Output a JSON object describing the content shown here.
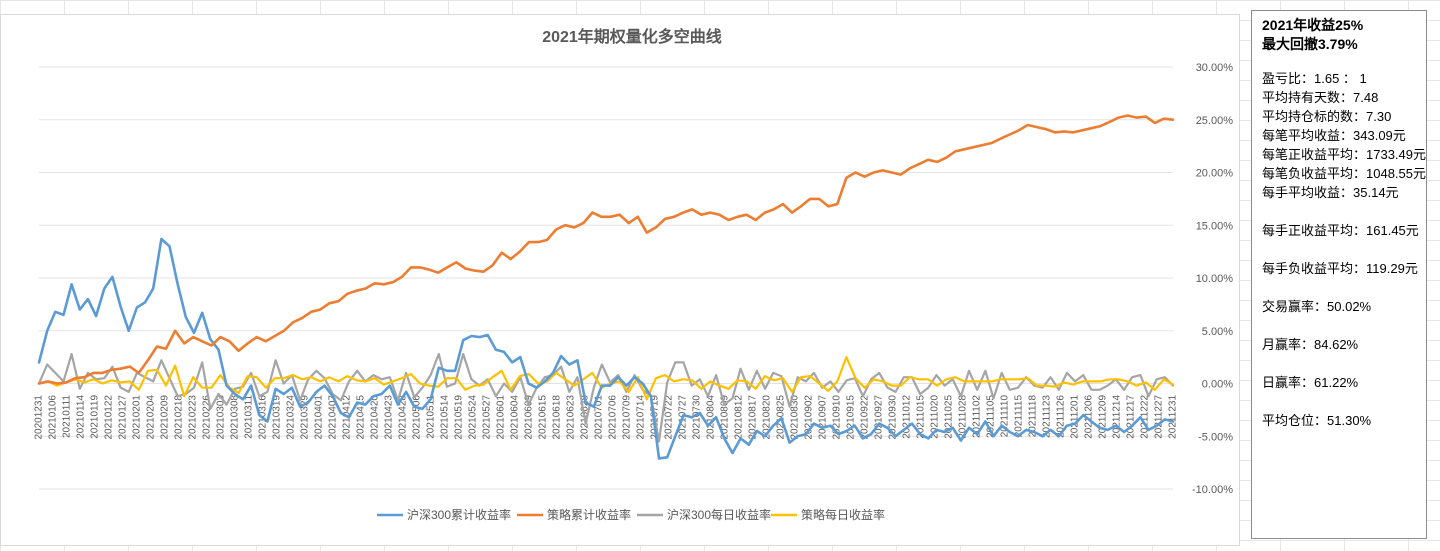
{
  "chart_data": {
    "type": "line",
    "title": "2021年期权量化多空曲线",
    "ylim": [
      -0.1,
      0.3
    ],
    "yticks": [
      "30.00%",
      "25.00%",
      "20.00%",
      "15.00%",
      "10.00%",
      "5.00%",
      "0.00%",
      "-5.00%",
      "-10.00%"
    ],
    "ytick_values": [
      0.3,
      0.25,
      0.2,
      0.15,
      0.1,
      0.05,
      0.0,
      -0.05,
      -0.1
    ],
    "xtick_labels": [
      "20201231",
      "20210106",
      "20210111",
      "20210114",
      "20210119",
      "20210122",
      "20210127",
      "20210201",
      "20210204",
      "20210209",
      "20210218",
      "20210223",
      "20210226",
      "20210303",
      "20210308",
      "20210311",
      "20210316",
      "20210319",
      "20210324",
      "20210329",
      "20210401",
      "20210407",
      "20210412",
      "20210415",
      "20210420",
      "20210423",
      "20210428",
      "20210506",
      "20210511",
      "20210514",
      "20210519",
      "20210524",
      "20210527",
      "20210601",
      "20210604",
      "20210609",
      "20210615",
      "20210618",
      "20210623",
      "20210628",
      "20210701",
      "20210706",
      "20210709",
      "20210714",
      "20210719",
      "20210722",
      "20210727",
      "20210730",
      "20210804",
      "20210809",
      "20210812",
      "20210817",
      "20210820",
      "20210825",
      "20210830",
      "20210902",
      "20210907",
      "20210910",
      "20210915",
      "20210922",
      "20210927",
      "20210930",
      "20211012",
      "20211015",
      "20211020",
      "20211025",
      "20211028",
      "20211102",
      "20211105",
      "20211110",
      "20211115",
      "20211118",
      "20211123",
      "20211126",
      "20211201",
      "20211206",
      "20211209",
      "20211214",
      "20211217",
      "20211222",
      "20211227",
      "20211231"
    ],
    "grid": true,
    "legend_position": "bottom",
    "series": [
      {
        "name": "沪深300累计收益率",
        "color": "#5b9bd5",
        "values": [
          0.02,
          0.05,
          0.068,
          0.065,
          0.094,
          0.07,
          0.08,
          0.064,
          0.09,
          0.101,
          0.073,
          0.05,
          0.072,
          0.077,
          0.09,
          0.137,
          0.13,
          0.094,
          0.063,
          0.048,
          0.067,
          0.042,
          0.032,
          -0.002,
          -0.01,
          -0.015,
          -0.002,
          -0.03,
          -0.036,
          -0.005,
          -0.01,
          -0.004,
          -0.022,
          -0.018,
          -0.008,
          -0.002,
          -0.012,
          -0.028,
          -0.032,
          -0.018,
          -0.02,
          -0.012,
          -0.01,
          -0.002,
          -0.02,
          -0.008,
          -0.022,
          -0.024,
          -0.015,
          0.015,
          0.012,
          0.012,
          0.041,
          0.045,
          0.044,
          0.046,
          0.032,
          0.03,
          0.02,
          0.025,
          0.0,
          -0.004,
          0.002,
          0.01,
          0.026,
          0.018,
          0.022,
          -0.018,
          -0.022,
          -0.002,
          -0.002,
          0.006,
          -0.002,
          0.006,
          0.0,
          -0.012,
          -0.071,
          -0.07,
          -0.05,
          -0.03,
          -0.032,
          -0.028,
          -0.04,
          -0.032,
          -0.052,
          -0.066,
          -0.052,
          -0.058,
          -0.045,
          -0.05,
          -0.04,
          -0.033,
          -0.056,
          -0.05,
          -0.048,
          -0.038,
          -0.042,
          -0.04,
          -0.048,
          -0.045,
          -0.04,
          -0.052,
          -0.048,
          -0.038,
          -0.042,
          -0.05,
          -0.044,
          -0.038,
          -0.048,
          -0.052,
          -0.044,
          -0.046,
          -0.042,
          -0.054,
          -0.042,
          -0.048,
          -0.036,
          -0.05,
          -0.04,
          -0.046,
          -0.05,
          -0.044,
          -0.046,
          -0.05,
          -0.044,
          -0.05,
          -0.04,
          -0.038,
          -0.03,
          -0.036,
          -0.042,
          -0.044,
          -0.04,
          -0.046,
          -0.04,
          -0.032,
          -0.044,
          -0.04,
          -0.034,
          -0.036
        ]
      },
      {
        "name": "策略累计收益率",
        "color": "#ed7d31",
        "values": [
          0.0,
          0.002,
          0.0,
          0.001,
          0.005,
          0.006,
          0.01,
          0.01,
          0.013,
          0.014,
          0.016,
          0.01,
          0.022,
          0.035,
          0.033,
          0.05,
          0.038,
          0.044,
          0.04,
          0.036,
          0.044,
          0.04,
          0.031,
          0.038,
          0.044,
          0.04,
          0.045,
          0.05,
          0.058,
          0.062,
          0.068,
          0.07,
          0.076,
          0.078,
          0.085,
          0.088,
          0.09,
          0.095,
          0.094,
          0.096,
          0.101,
          0.11,
          0.11,
          0.108,
          0.105,
          0.11,
          0.115,
          0.109,
          0.107,
          0.106,
          0.112,
          0.124,
          0.118,
          0.125,
          0.134,
          0.134,
          0.136,
          0.146,
          0.15,
          0.148,
          0.152,
          0.162,
          0.158,
          0.158,
          0.16,
          0.152,
          0.158,
          0.143,
          0.148,
          0.156,
          0.158,
          0.162,
          0.165,
          0.16,
          0.162,
          0.16,
          0.155,
          0.158,
          0.16,
          0.155,
          0.162,
          0.165,
          0.17,
          0.162,
          0.168,
          0.175,
          0.175,
          0.168,
          0.17,
          0.195,
          0.2,
          0.196,
          0.2,
          0.202,
          0.2,
          0.198,
          0.204,
          0.208,
          0.212,
          0.21,
          0.214,
          0.22,
          0.222,
          0.224,
          0.226,
          0.228,
          0.232,
          0.236,
          0.24,
          0.245,
          0.243,
          0.241,
          0.238,
          0.239,
          0.238,
          0.24,
          0.242,
          0.244,
          0.248,
          0.252,
          0.254,
          0.252,
          0.253,
          0.247,
          0.251,
          0.25
        ]
      },
      {
        "name": "沪深300每日收益率",
        "color": "#a5a5a5",
        "values": [
          0.0,
          0.018,
          0.01,
          0.002,
          0.028,
          -0.005,
          0.01,
          0.004,
          0.005,
          0.016,
          -0.004,
          -0.008,
          0.01,
          0.006,
          0.002,
          0.022,
          0.005,
          -0.012,
          -0.01,
          -0.004,
          0.02,
          -0.024,
          -0.01,
          -0.02,
          -0.005,
          -0.003,
          0.01,
          -0.012,
          -0.008,
          0.022,
          0.0,
          0.008,
          -0.016,
          0.004,
          0.012,
          0.005,
          -0.01,
          -0.016,
          0.002,
          0.012,
          0.002,
          0.008,
          0.004,
          0.006,
          -0.016,
          0.01,
          -0.013,
          -0.004,
          0.008,
          0.028,
          -0.003,
          0.0,
          0.028,
          0.004,
          -0.002,
          0.004,
          -0.012,
          0.0,
          -0.008,
          0.006,
          -0.02,
          -0.004,
          0.006,
          0.008,
          0.016,
          -0.008,
          0.006,
          -0.038,
          -0.004,
          0.018,
          0.001,
          0.008,
          -0.008,
          0.008,
          -0.006,
          -0.012,
          -0.055,
          0.001,
          0.02,
          0.02,
          -0.002,
          0.004,
          -0.012,
          0.008,
          -0.02,
          -0.014,
          0.014,
          -0.006,
          0.012,
          -0.005,
          0.01,
          0.007,
          -0.022,
          0.006,
          0.002,
          0.01,
          -0.004,
          0.002,
          -0.008,
          0.003,
          0.005,
          -0.012,
          0.004,
          0.01,
          -0.004,
          -0.008,
          0.006,
          0.006,
          -0.01,
          -0.004,
          0.008,
          -0.002,
          0.004,
          -0.012,
          0.012,
          -0.006,
          0.012,
          -0.014,
          0.01,
          -0.006,
          -0.004,
          0.006,
          -0.002,
          -0.004,
          0.006,
          -0.006,
          0.01,
          0.002,
          0.008,
          -0.006,
          -0.006,
          -0.002,
          0.004,
          -0.006,
          0.006,
          0.008,
          -0.012,
          0.004,
          0.006,
          -0.002
        ]
      },
      {
        "name": "策略每日收益率",
        "color": "#ffc000",
        "values": [
          0.0,
          0.002,
          -0.002,
          0.001,
          0.004,
          0.001,
          0.004,
          0.0,
          0.003,
          0.001,
          0.002,
          -0.006,
          0.012,
          0.013,
          -0.002,
          0.017,
          -0.012,
          0.006,
          -0.004,
          -0.004,
          0.008,
          -0.004,
          -0.009,
          0.007,
          0.006,
          -0.004,
          0.005,
          0.005,
          0.008,
          0.004,
          0.006,
          0.002,
          0.006,
          0.002,
          0.007,
          0.003,
          0.002,
          0.005,
          -0.001,
          0.002,
          0.005,
          0.009,
          0.0,
          -0.002,
          -0.003,
          0.005,
          0.005,
          -0.006,
          -0.002,
          -0.001,
          0.006,
          0.012,
          -0.006,
          0.007,
          0.009,
          0.0,
          0.002,
          0.01,
          0.004,
          -0.002,
          0.004,
          0.01,
          -0.004,
          0.0,
          0.002,
          -0.008,
          0.006,
          -0.015,
          0.005,
          0.008,
          0.002,
          0.004,
          0.003,
          -0.005,
          0.002,
          -0.002,
          -0.005,
          0.003,
          0.002,
          -0.005,
          0.007,
          0.003,
          0.005,
          -0.008,
          0.006,
          0.007,
          0.0,
          -0.007,
          0.002,
          0.025,
          0.005,
          -0.004,
          0.004,
          0.002,
          -0.002,
          -0.002,
          0.006,
          0.004,
          0.004,
          -0.002,
          0.004,
          0.006,
          0.002,
          0.002,
          0.002,
          0.002,
          0.004,
          0.004,
          0.004,
          0.005,
          -0.002,
          -0.002,
          -0.003,
          0.001,
          -0.001,
          0.002,
          0.002,
          0.002,
          0.004,
          0.004,
          0.002,
          -0.002,
          0.001,
          -0.006,
          0.004,
          -0.001
        ]
      }
    ]
  },
  "stats": {
    "headline_1": "2021年收益25%",
    "headline_2": "最大回撤3.79%",
    "rows": [
      {
        "label": "盈亏比：",
        "value": "1.65 ： 1"
      },
      {
        "label": "平均持有天数：",
        "value": "7.48"
      },
      {
        "label": "平均持仓标的数：",
        "value": "7.30"
      },
      {
        "label": "每笔平均收益：",
        "value": "343.09元"
      },
      {
        "label": "每笔正收益平均：",
        "value": "1733.49元"
      },
      {
        "label": "每笔负收益平均：",
        "value": "1048.55元"
      },
      {
        "label": "每手平均收益：",
        "value": "35.14元"
      },
      {
        "label": "每手正收益平均：",
        "value": "161.45元"
      },
      {
        "label": "每手负收益平均：",
        "value": "119.29元"
      },
      {
        "label": "交易赢率：",
        "value": "50.02%"
      },
      {
        "label": "月赢率：",
        "value": "84.62%"
      },
      {
        "label": "日赢率：",
        "value": "61.22%"
      },
      {
        "label": "平均仓位：",
        "value": "51.30%"
      }
    ]
  }
}
